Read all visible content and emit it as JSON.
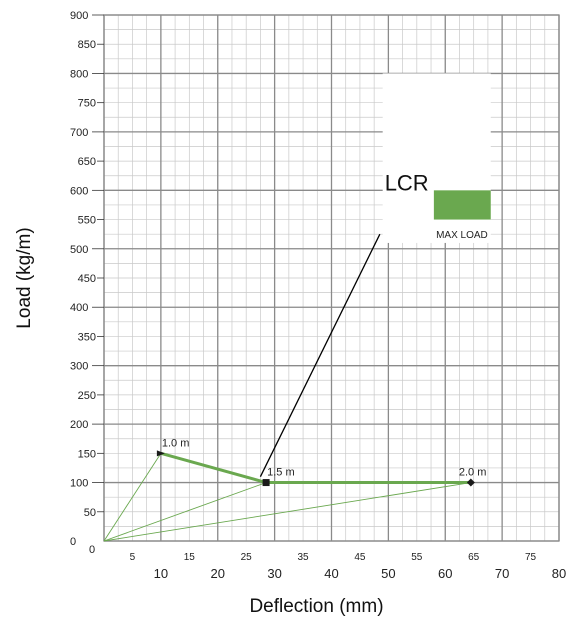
{
  "colors": {
    "minor_grid": "#c9c9c9",
    "major_grid": "#8a8a8a",
    "series_line": "#6aa84f",
    "max_load_fill": "#6aa84f",
    "marker": "#1a1a1a",
    "leader": "#000000",
    "background": "#ffffff"
  },
  "chart_data": {
    "type": "line",
    "xlabel": "Deflection (mm)",
    "ylabel": "Load (kg/m)",
    "xlim": [
      0,
      80
    ],
    "ylim": [
      0,
      900
    ],
    "x_ticks_major": [
      10,
      20,
      30,
      40,
      50,
      60,
      70,
      80
    ],
    "x_ticks_minor": [
      5,
      15,
      25,
      35,
      45,
      55,
      65,
      75
    ],
    "y_ticks": [
      0,
      50,
      100,
      150,
      200,
      250,
      300,
      350,
      400,
      450,
      500,
      550,
      600,
      650,
      700,
      750,
      800,
      850,
      900
    ],
    "grid": true,
    "series": [
      {
        "marker": "auto",
        "points": [
          {
            "label": "1.0 m",
            "x": 10,
            "y": 150,
            "marker": "triangle"
          },
          {
            "label": "1.5 m",
            "x": 28.5,
            "y": 100,
            "marker": "square"
          },
          {
            "label": "2.0 m",
            "x": 64.5,
            "y": 100,
            "marker": "diamond"
          }
        ]
      }
    ],
    "origin_rays": true,
    "annotation": {
      "title": "LCR",
      "legend_label": "MAX LOAD",
      "box_x": [
        49,
        68
      ],
      "box_y": [
        510,
        800
      ],
      "swatch_x": [
        58,
        68
      ],
      "swatch_y": [
        550,
        600
      ],
      "leader_from": {
        "x": 27.5,
        "y": 110
      },
      "leader_to": {
        "x": 48.5,
        "y": 525
      }
    }
  }
}
